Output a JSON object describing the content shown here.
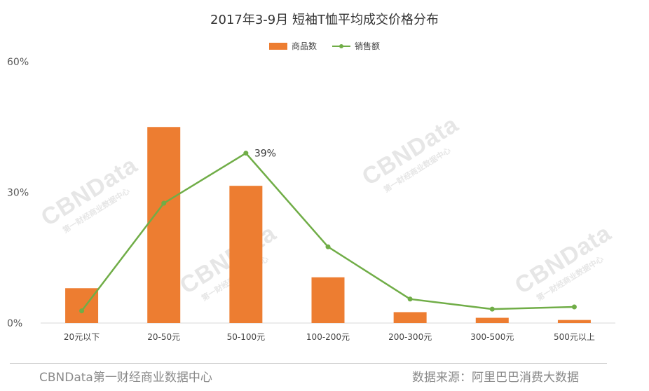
{
  "title": "2017年3-9月 短袖T恤平均成交价格分布",
  "legend": {
    "bar_label": "商品数",
    "line_label": "销售额"
  },
  "footer": {
    "left": "CBNData第一财经商业数据中心",
    "right": "数据来源：阿里巴巴消费大数据"
  },
  "watermark": {
    "main": "CBNData",
    "sub": "第一财经商业数据中心"
  },
  "colors": {
    "bar": "#ED7D31",
    "line": "#70AD47",
    "axis": "#d9d9d9",
    "tick": "#595959"
  },
  "chart_data": {
    "type": "bar",
    "categories": [
      "20元以下",
      "20-50元",
      "50-100元",
      "100-200元",
      "200-300元",
      "300-500元",
      "500元以上"
    ],
    "series": [
      {
        "name": "商品数",
        "type": "bar",
        "values": [
          8,
          45,
          31.5,
          10.5,
          2.5,
          1.2,
          0.7
        ]
      },
      {
        "name": "销售额",
        "type": "line",
        "values": [
          2.8,
          27.5,
          39,
          17.5,
          5.5,
          3.2,
          3.7
        ]
      }
    ],
    "y_ticks": [
      "0%",
      "30%",
      "60%"
    ],
    "ylim": [
      0,
      60
    ],
    "annotation": {
      "label": "39%",
      "series": 1,
      "index": 2
    },
    "grid": false,
    "legend_position": "top-center"
  }
}
